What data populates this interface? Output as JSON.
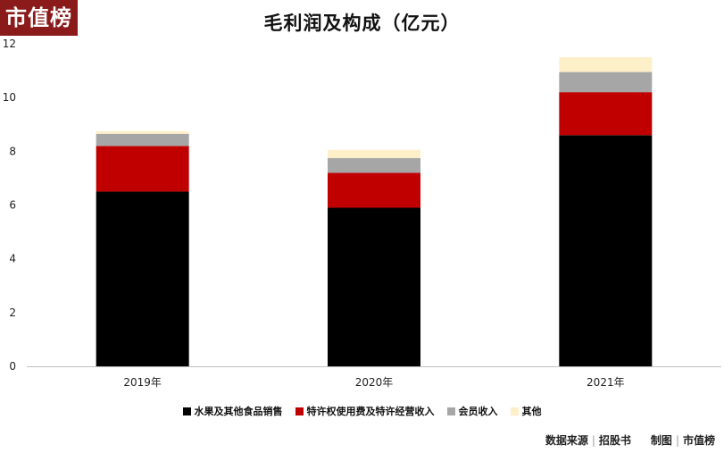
{
  "logo_text": "市值榜",
  "footer": {
    "source_label": "数据来源",
    "source_value": "招股书",
    "credit_1": "制图",
    "credit_2": "市值榜"
  },
  "chart_data": {
    "type": "bar",
    "stacked": true,
    "title": "毛利润及构成（亿元）",
    "xlabel": "",
    "ylabel": "",
    "categories": [
      "2019年",
      "2020年",
      "2021年"
    ],
    "ylim": [
      0,
      12
    ],
    "yticks": [
      0,
      2,
      4,
      6,
      8,
      10,
      12
    ],
    "grid": false,
    "legend_position": "bottom",
    "series": [
      {
        "name": "水果及其他食品销售",
        "color": "#000000",
        "values": [
          6.5,
          5.9,
          8.6
        ]
      },
      {
        "name": "特许权使用费及特许经营收入",
        "color": "#c00000",
        "values": [
          1.7,
          1.3,
          1.6
        ]
      },
      {
        "name": "会员收入",
        "color": "#a6a6a6",
        "values": [
          0.45,
          0.55,
          0.75
        ]
      },
      {
        "name": "其他",
        "color": "#fdefc8",
        "values": [
          0.1,
          0.3,
          0.55
        ]
      }
    ]
  }
}
